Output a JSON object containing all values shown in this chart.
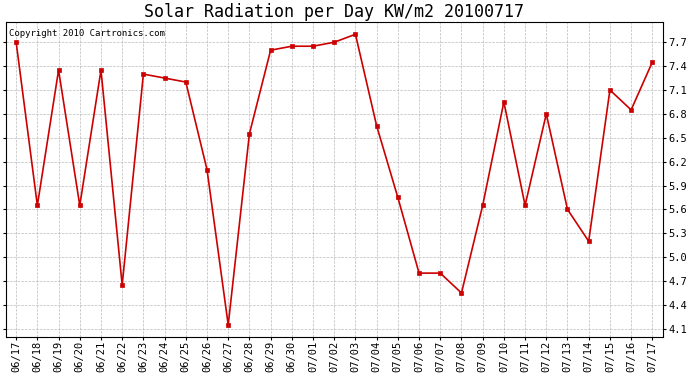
{
  "title": "Solar Radiation per Day KW/m2 20100717",
  "copyright_text": "Copyright 2010 Cartronics.com",
  "labels": [
    "06/17",
    "06/18",
    "06/19",
    "06/20",
    "06/21",
    "06/22",
    "06/23",
    "06/24",
    "06/25",
    "06/26",
    "06/27",
    "06/28",
    "06/29",
    "06/30",
    "07/01",
    "07/02",
    "07/03",
    "07/04",
    "07/05",
    "07/06",
    "07/07",
    "07/08",
    "07/09",
    "07/10",
    "07/11",
    "07/12",
    "07/13",
    "07/14",
    "07/15",
    "07/16",
    "07/17"
  ],
  "values": [
    7.7,
    5.65,
    7.35,
    5.65,
    7.35,
    4.65,
    7.3,
    7.25,
    7.2,
    6.1,
    4.15,
    6.55,
    7.6,
    7.65,
    7.65,
    7.7,
    7.8,
    6.65,
    5.75,
    4.8,
    4.8,
    4.55,
    5.65,
    6.95,
    5.65,
    6.8,
    5.6,
    5.2,
    7.1,
    6.85,
    7.45
  ],
  "line_color": "#cc0000",
  "marker": "s",
  "marker_size": 3,
  "bg_color": "#ffffff",
  "grid_color": "#aaaaaa",
  "ylim": [
    4.0,
    7.95
  ],
  "yticks": [
    4.1,
    4.4,
    4.7,
    5.0,
    5.3,
    5.6,
    5.9,
    6.2,
    6.5,
    6.8,
    7.1,
    7.4,
    7.7
  ],
  "title_fontsize": 12,
  "tick_fontsize": 7.5,
  "copyright_fontsize": 6.5
}
